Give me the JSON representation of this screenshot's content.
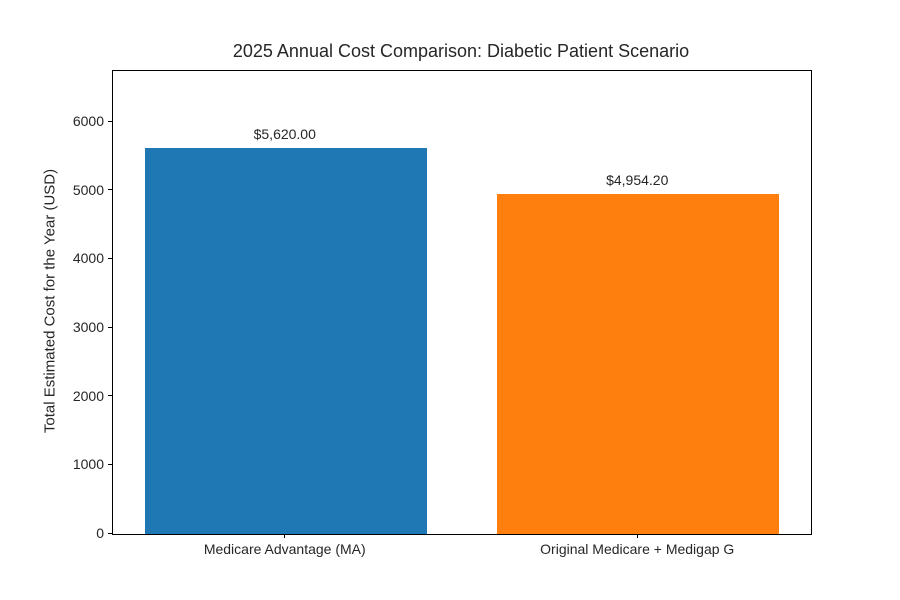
{
  "chart_data": {
    "type": "bar",
    "title": "2025 Annual Cost Comparison: Diabetic Patient Scenario",
    "xlabel": "",
    "ylabel": "Total Estimated Cost for the Year (USD)",
    "categories": [
      "Medicare Advantage (MA)",
      "Original Medicare + Medigap G"
    ],
    "values": [
      5620.0,
      4954.2
    ],
    "value_labels": [
      "$5,620.00",
      "$4,954.20"
    ],
    "bar_colors": [
      "#1f77b4",
      "#ff7f0e"
    ],
    "ylim": [
      0,
      6744
    ],
    "yticks": [
      0,
      1000,
      2000,
      3000,
      4000,
      5000,
      6000
    ],
    "grid": false,
    "legend_position": "none",
    "frame_color": "#000000",
    "background_color": "#ffffff"
  }
}
